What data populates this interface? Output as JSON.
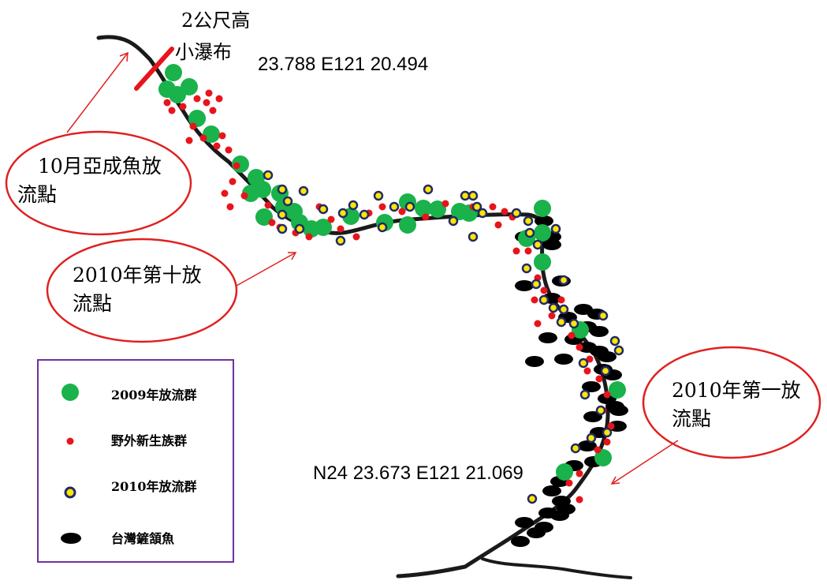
{
  "annotations": {
    "waterfall_line1": "2公尺高",
    "waterfall_line2": "小瀑布",
    "coord_top": "23.788 E121 20.494",
    "coord_bottom": "N24 23.673 E121 21.069"
  },
  "callouts": [
    {
      "line1": "10月亞成魚放",
      "line2": "流點"
    },
    {
      "line1": "2010年第十放",
      "line2": "流點"
    },
    {
      "line1": "2010年第一放",
      "line2": "流點"
    }
  ],
  "legend": [
    {
      "label": "2009年放流群",
      "symbol": "green-circle-icon"
    },
    {
      "label": "野外新生族群",
      "symbol": "red-dot-icon"
    },
    {
      "label": "2010年放流群",
      "symbol": "yellow-ring-icon"
    },
    {
      "label": "台灣鏟頷魚",
      "symbol": "black-ellipse-icon"
    }
  ],
  "colors": {
    "green": "#19b24b",
    "red": "#e8141b",
    "yellow": "#ffe600",
    "navy": "#1f2a6b",
    "black": "#000000",
    "callout_red": "#e02020",
    "legend_border": "#7030a0"
  }
}
